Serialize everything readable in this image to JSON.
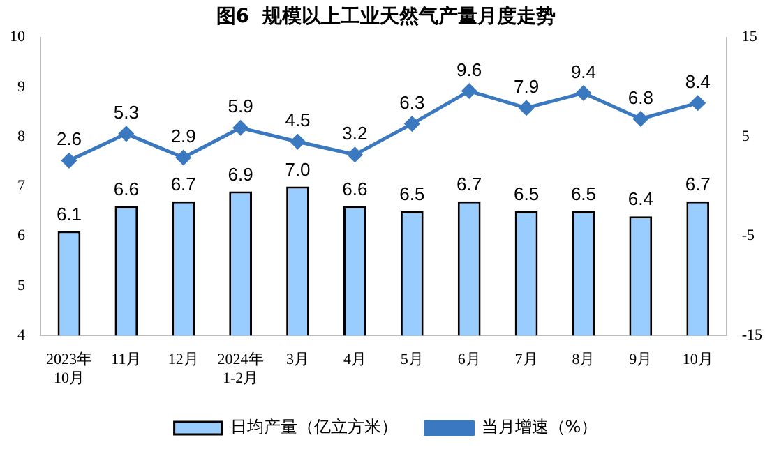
{
  "chart_data": {
    "type": "bar",
    "title": "图6  规模以上工业天然气产量月度走势",
    "categories": [
      "2023年\n10月",
      "11月",
      "12月",
      "2024年\n1-2月",
      "3月",
      "4月",
      "5月",
      "6月",
      "7月",
      "8月",
      "9月",
      "10月"
    ],
    "series": [
      {
        "name": "日均产量（亿立方米）",
        "color": "#99ccff",
        "values": [
          6.1,
          6.6,
          6.7,
          6.9,
          7.0,
          6.6,
          6.5,
          6.7,
          6.5,
          6.5,
          6.4,
          6.7
        ],
        "value_labels": [
          "6.1",
          "6.6",
          "6.7",
          "6.9",
          "7.0",
          "6.6",
          "6.5",
          "6.7",
          "6.5",
          "6.5",
          "6.4",
          "6.7"
        ]
      },
      {
        "name": "当月增速（%）",
        "type": "line",
        "axis": "y2",
        "color": "#3a78c0",
        "values": [
          2.6,
          5.3,
          2.9,
          5.9,
          4.5,
          3.2,
          6.3,
          9.6,
          7.9,
          9.4,
          6.8,
          8.4
        ]
      }
    ],
    "ylim": [
      4,
      10
    ],
    "yticks": [
      4,
      5,
      6,
      7,
      8,
      9,
      10
    ],
    "y2lim": [
      -15,
      15
    ],
    "y2ticks": [
      -15,
      -5,
      5,
      15
    ],
    "grid": false,
    "legend": "bottom",
    "marker": "diamond",
    "data_labels": true
  }
}
